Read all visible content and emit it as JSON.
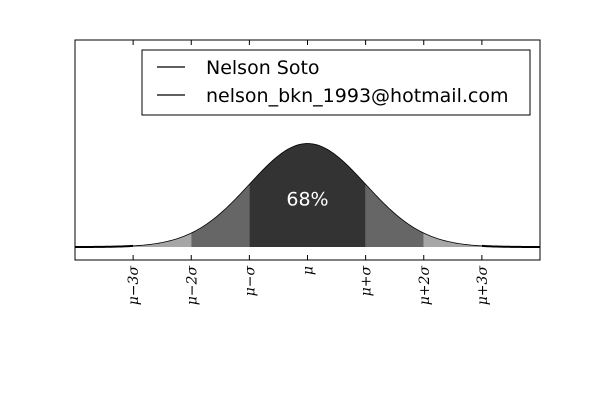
{
  "chart_data": {
    "type": "area",
    "title": "",
    "xlabel": "",
    "ylabel": "",
    "distribution": "normal",
    "xlim": [
      -4,
      4
    ],
    "ylim": [
      -0.05,
      0.8
    ],
    "x_ticks": [
      {
        "x": -3,
        "label": "μ−3σ"
      },
      {
        "x": -2,
        "label": "μ−2σ"
      },
      {
        "x": -1,
        "label": "μ−σ"
      },
      {
        "x": 0,
        "label": "μ"
      },
      {
        "x": 1,
        "label": "μ+σ"
      },
      {
        "x": 2,
        "label": "μ+2σ"
      },
      {
        "x": 3,
        "label": "μ+3σ"
      }
    ],
    "shaded_bands": [
      {
        "from": -3,
        "to": -2,
        "color": "#a6a6a6"
      },
      {
        "from": -2,
        "to": -1,
        "color": "#666666"
      },
      {
        "from": -1,
        "to": 1,
        "color": "#333333"
      },
      {
        "from": 1,
        "to": 2,
        "color": "#666666"
      },
      {
        "from": 2,
        "to": 3,
        "color": "#a6a6a6"
      }
    ],
    "annotation": {
      "x": 0,
      "y": 0.16,
      "text": "68%"
    },
    "legend": {
      "placement": "top-right",
      "entries": [
        "Nelson Soto",
        "nelson_bkn_1993@hotmail.com"
      ]
    },
    "grid": false
  }
}
